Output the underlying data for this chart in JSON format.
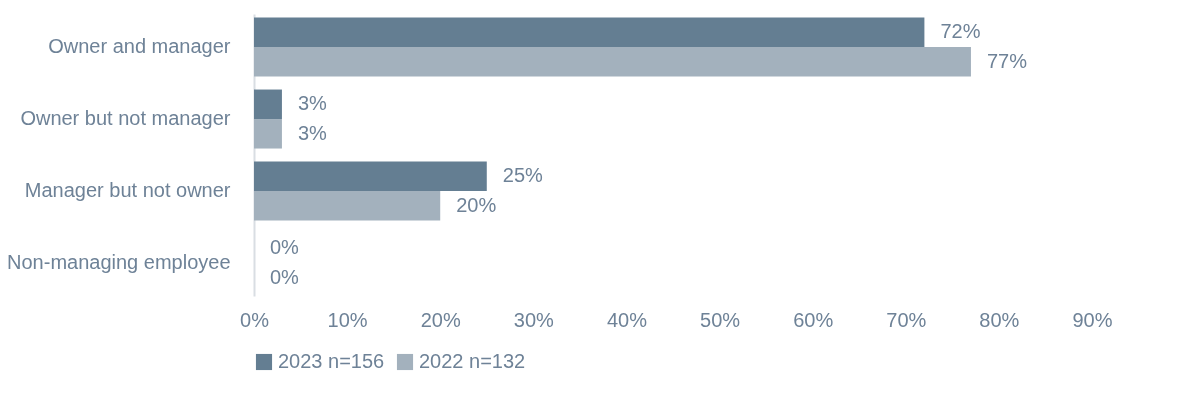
{
  "chart_data": {
    "type": "bar",
    "orientation": "horizontal",
    "categories": [
      "Owner and manager",
      "Owner but not manager",
      "Manager but not owner",
      "Non-managing employee"
    ],
    "series": [
      {
        "name": "2023 n=156",
        "color": "#647e92",
        "values": [
          72,
          3,
          25,
          0
        ],
        "value_labels": [
          "72%",
          "3%",
          "25%",
          "0%"
        ]
      },
      {
        "name": "2022 n=132",
        "color": "#a3b1bd",
        "values": [
          77,
          3,
          20,
          0
        ],
        "value_labels": [
          "77%",
          "3%",
          "20%",
          "0%"
        ]
      }
    ],
    "xlim": [
      0,
      90
    ],
    "xticks": [
      {
        "value": 0,
        "label": "0%"
      },
      {
        "value": 10,
        "label": "10%"
      },
      {
        "value": 20,
        "label": "20%"
      },
      {
        "value": 30,
        "label": "30%"
      },
      {
        "value": 40,
        "label": "40%"
      },
      {
        "value": 50,
        "label": "50%"
      },
      {
        "value": 60,
        "label": "60%"
      },
      {
        "value": 70,
        "label": "70%"
      },
      {
        "value": 80,
        "label": "80%"
      },
      {
        "value": 90,
        "label": "90%"
      }
    ],
    "legend": "bottom"
  }
}
